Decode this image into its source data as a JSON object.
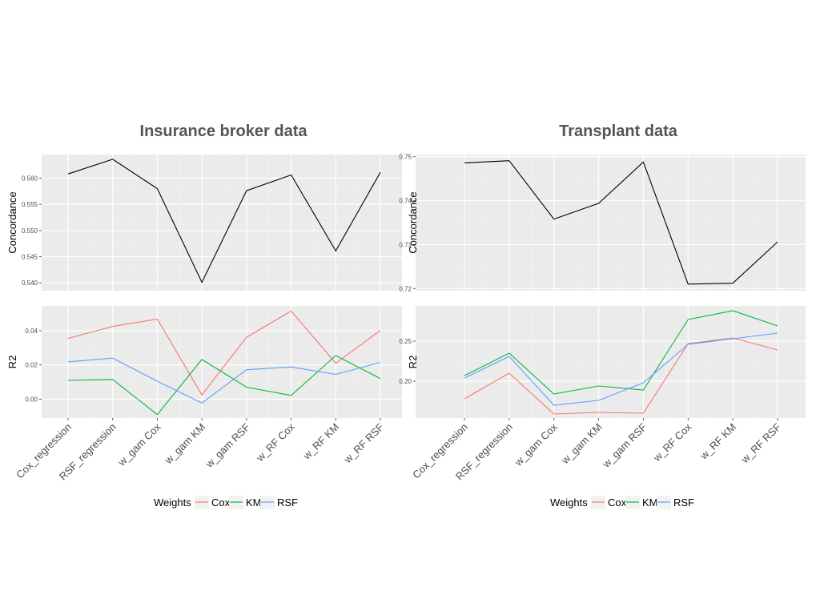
{
  "chart_data": [
    {
      "type": "line",
      "title": "Insurance broker data",
      "categories": [
        "Cox_regression",
        "RSF_regression",
        "w_gam Cox",
        "w_gam KM",
        "w_gam RSF",
        "w_RF Cox",
        "w_RF KM",
        "w_RF RSF"
      ],
      "legend": {
        "title": "Weights",
        "placement": "bottom",
        "entries": [
          "Cox",
          "KM",
          "RSF"
        ]
      },
      "panels": [
        {
          "ylabel": "Concordance",
          "ylim": [
            0.5385,
            0.5645
          ],
          "yticks": [
            0.54,
            0.545,
            0.55,
            0.555,
            0.56
          ],
          "ytick_labels": [
            "0.540",
            "0.545",
            "0.550",
            "0.555",
            "0.560"
          ],
          "series": [
            {
              "color": "#000000",
              "values": [
                0.5608,
                0.5636,
                0.558,
                0.5401,
                0.5576,
                0.5606,
                0.5461,
                0.5611
              ]
            }
          ]
        },
        {
          "ylabel": "R2",
          "ylim": [
            -0.011,
            0.0545
          ],
          "yticks": [
            0.0,
            0.02,
            0.04
          ],
          "ytick_labels": [
            "0.00",
            "0.02",
            "0.04"
          ],
          "series": [
            {
              "name": "Cox",
              "color": "#f8766d",
              "values": [
                0.0355,
                0.0425,
                0.0468,
                0.0025,
                0.0362,
                0.0515,
                0.021,
                0.0402
              ]
            },
            {
              "name": "KM",
              "color": "#00ba38",
              "values": [
                0.011,
                0.0115,
                -0.009,
                0.0232,
                0.007,
                0.0022,
                0.0255,
                0.012
              ]
            },
            {
              "name": "RSF",
              "color": "#619cff",
              "values": [
                0.0218,
                0.024,
                0.0105,
                -0.0022,
                0.0172,
                0.0188,
                0.0145,
                0.0215
              ]
            }
          ]
        }
      ]
    },
    {
      "type": "line",
      "title": "Transplant data",
      "categories": [
        "Cox_regression",
        "RSF_regression",
        "w_gam Cox",
        "w_gam KM",
        "w_gam RSF",
        "w_RF Cox",
        "w_RF KM",
        "w_RF RSF"
      ],
      "legend": {
        "title": "Weights",
        "placement": "bottom",
        "entries": [
          "Cox",
          "KM",
          "RSF"
        ]
      },
      "panels": [
        {
          "ylabel": "Concordance",
          "ylim": [
            0.7195,
            0.7505
          ],
          "yticks": [
            0.72,
            0.73,
            0.74,
            0.75
          ],
          "ytick_labels": [
            "0.72",
            "0.73",
            "0.74",
            "0.75"
          ],
          "series": [
            {
              "color": "#000000",
              "values": [
                0.7486,
                0.7491,
                0.7358,
                0.7394,
                0.7488,
                0.721,
                0.7212,
                0.7306
              ]
            }
          ]
        },
        {
          "ylabel": "R2",
          "ylim": [
            0.154,
            0.294
          ],
          "yticks": [
            0.2,
            0.25
          ],
          "ytick_labels": [
            "0.20",
            "0.25"
          ],
          "series": [
            {
              "name": "Cox",
              "color": "#f8766d",
              "values": [
                0.178,
                0.21,
                0.159,
                0.161,
                0.16,
                0.247,
                0.254,
                0.239
              ]
            },
            {
              "name": "KM",
              "color": "#00ba38",
              "values": [
                0.207,
                0.235,
                0.184,
                0.194,
                0.189,
                0.277,
                0.288,
                0.269
              ]
            },
            {
              "name": "RSF",
              "color": "#619cff",
              "values": [
                0.204,
                0.231,
                0.17,
                0.176,
                0.198,
                0.246,
                0.253,
                0.26
              ]
            }
          ]
        }
      ]
    }
  ]
}
